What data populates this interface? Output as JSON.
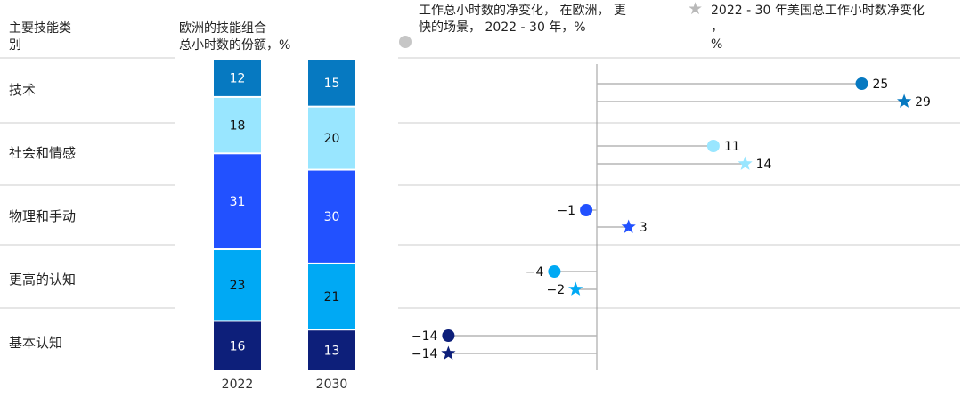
{
  "header": {
    "col1_lines": [
      "主要技能类",
      "别"
    ],
    "col2_lines": [
      "欧洲的技能组合",
      "总小时数的份额，%"
    ],
    "col3_lines": [
      "工作总小时数的净变化，  在欧洲，  更",
      "快的场景，  2022 - 30 年，%"
    ],
    "col4_lines": [
      "2022 - 30 年美国总工作小时数净变化",
      "，",
      "%"
    ],
    "legend_circle_icon": "circle-marker",
    "legend_star_icon": "star-marker"
  },
  "chart_data": [
    {
      "type": "bar",
      "stacked": true,
      "title": "欧洲的技能组合总小时数的份额，%",
      "categories": [
        "2022",
        "2030"
      ],
      "series": [
        {
          "name": "基本认知",
          "values": [
            16,
            13
          ],
          "color": "#0d1f7a",
          "label_color": "#ffffff"
        },
        {
          "name": "更高的认知",
          "values": [
            23,
            21
          ],
          "color": "#00a9f4",
          "label_color": "#111111"
        },
        {
          "name": "物理和手动",
          "values": [
            31,
            30
          ],
          "color": "#2251ff",
          "label_color": "#ffffff"
        },
        {
          "name": "社会和情感",
          "values": [
            18,
            20
          ],
          "color": "#99e6ff",
          "label_color": "#111111"
        },
        {
          "name": "技术",
          "values": [
            12,
            15
          ],
          "color": "#0679c1",
          "label_color": "#ffffff"
        }
      ]
    },
    {
      "type": "scatter",
      "subtype": "lollipop",
      "categories": [
        "技术",
        "社会和情感",
        "物理和手动",
        "更高的认知",
        "基本认知"
      ],
      "colors": [
        "#0679c1",
        "#99e6ff",
        "#2251ff",
        "#00a9f4",
        "#0d1f7a"
      ],
      "series": [
        {
          "name": "工作总小时数的净变化，在欧洲，更快的场景，2022 - 30 年，%",
          "marker": "circle",
          "values": [
            25,
            11,
            -1,
            -4,
            -14
          ]
        },
        {
          "name": "2022 - 30 年美国总工作小时数净变化，%",
          "marker": "star",
          "values": [
            29,
            14,
            3,
            -2,
            -14
          ]
        }
      ],
      "labels": {
        "circle": [
          "25",
          "11",
          "−1",
          "−4",
          "−14"
        ],
        "star": [
          "29",
          "14",
          "3",
          "−2",
          "−14"
        ]
      },
      "xlim": [
        -15,
        31
      ],
      "zero_line": true
    }
  ]
}
